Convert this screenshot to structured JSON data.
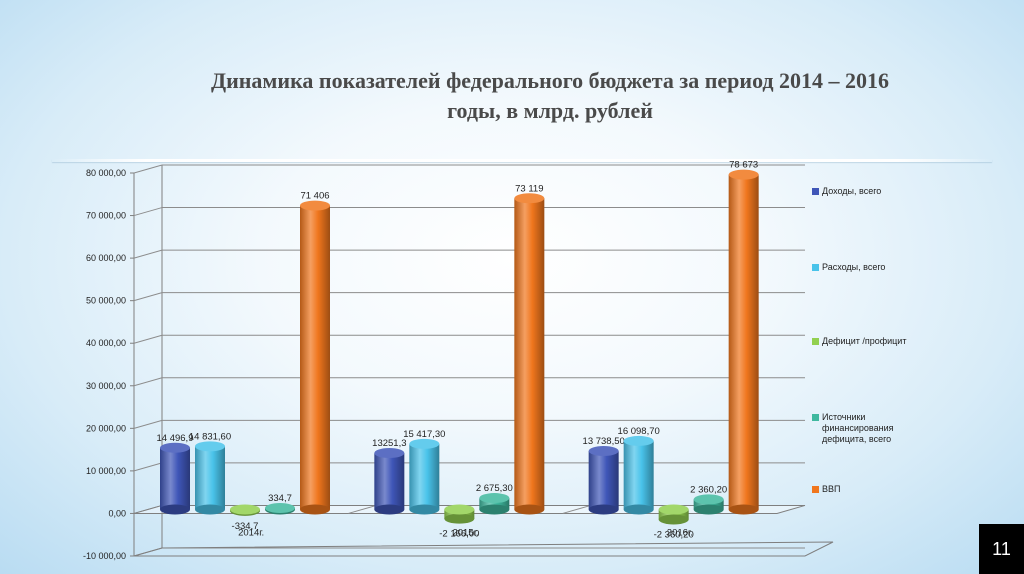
{
  "slide": {
    "title_line1": "Динамика показателей федерального бюджета за  период 2014 – 2016",
    "title_line2": "годы,  в млрд. рублей",
    "page_number": "11"
  },
  "chart_data": {
    "type": "bar",
    "categories": [
      "2014г.",
      "2015г.",
      "2016г."
    ],
    "ylim": [
      -10000,
      80000
    ],
    "y_ticks": [
      "-10 000,00",
      "0,00",
      "10 000,00",
      "20 000,00",
      "30 000,00",
      "40 000,00",
      "50 000,00",
      "60 000,00",
      "70 000,00",
      "80 000,00"
    ],
    "grid": true,
    "legend_position": "right",
    "series": [
      {
        "name": "Доходы, всего",
        "color": "#3f56b8",
        "values": [
          14496.9,
          13251.3,
          13738.5
        ],
        "labels": [
          "14 496,9",
          "13251,3",
          "13 738,50"
        ]
      },
      {
        "name": "Расходы, всего",
        "color": "#49c3ea",
        "values": [
          14831.6,
          15417.3,
          16098.7
        ],
        "labels": [
          "14 831,60",
          "15 417,30",
          "16 098,70"
        ]
      },
      {
        "name": "Дефицит /профицит",
        "color": "#92d050",
        "values": [
          -334.7,
          -2166.0,
          -2360.2
        ],
        "labels": [
          "-334,7",
          "-2 166,00",
          "-2 360,20"
        ]
      },
      {
        "name": "Источники финансирования дефицита, всего",
        "color": "#3fb89f",
        "values": [
          334.7,
          2675.3,
          2360.2
        ],
        "labels": [
          "334,7",
          "2 675,30",
          "2 360,20"
        ]
      },
      {
        "name": "ВВП",
        "color": "#f0761d",
        "values": [
          71406,
          73119,
          78673
        ],
        "labels": [
          "71 406",
          "73 119",
          "78 673"
        ]
      }
    ]
  }
}
